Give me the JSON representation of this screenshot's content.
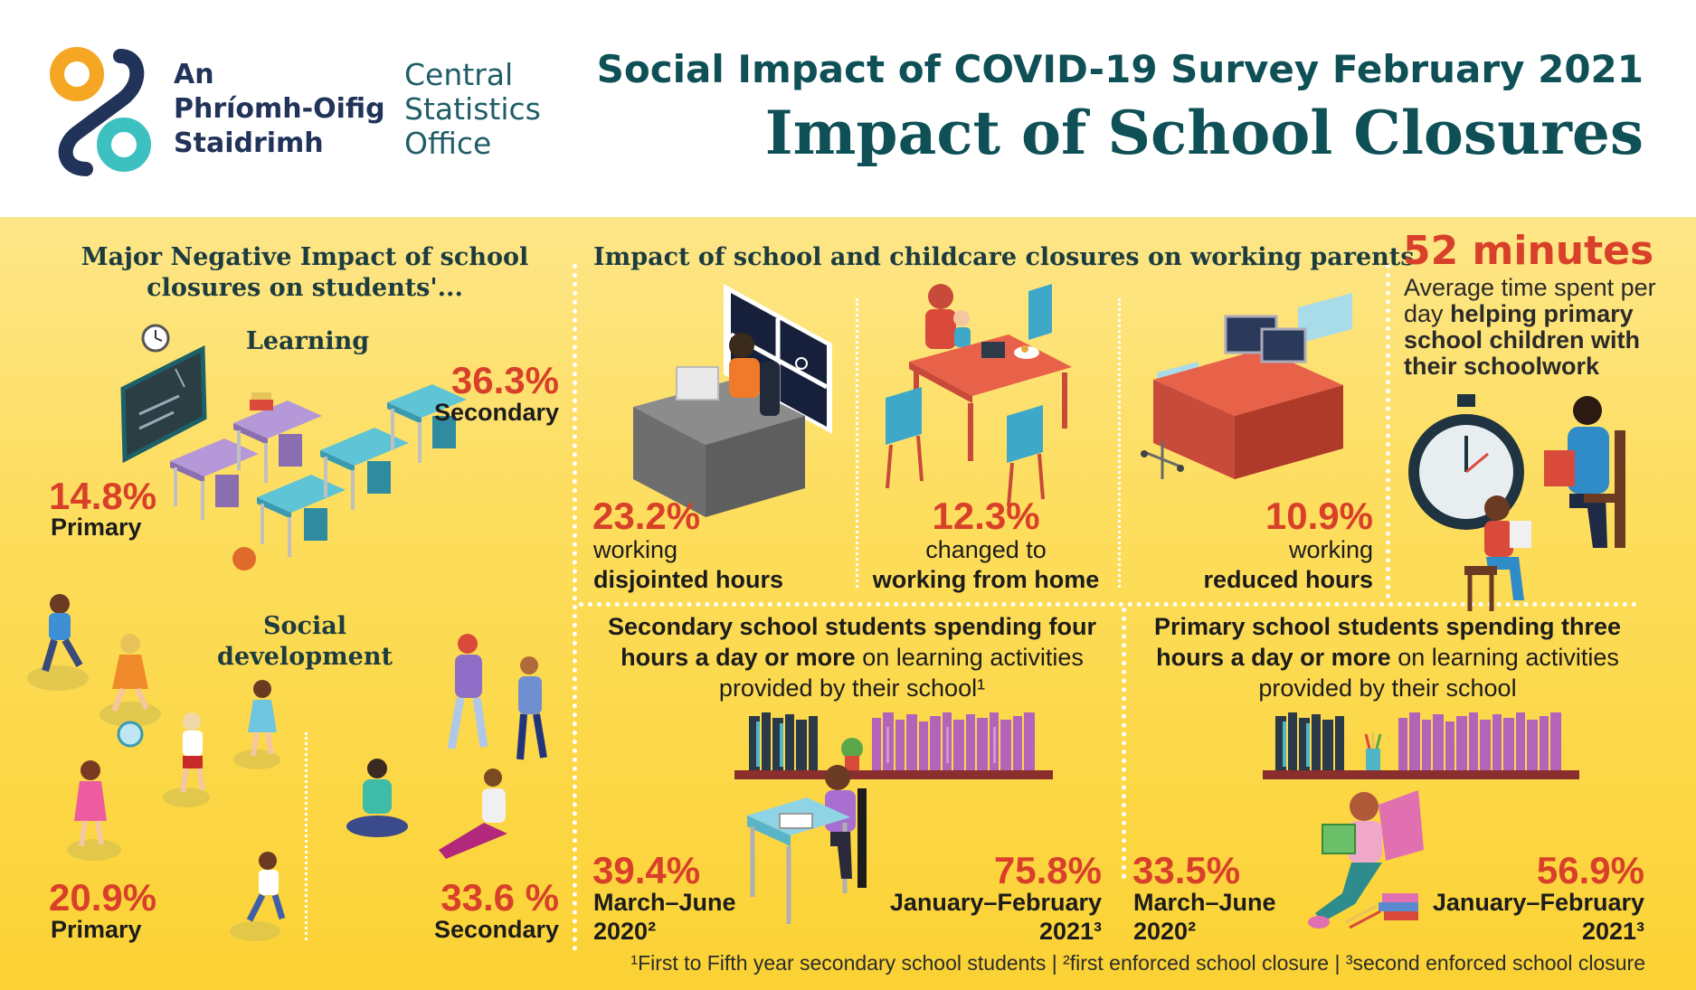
{
  "header": {
    "logo_irish": [
      "An",
      "Phríomh-Oifig",
      "Staidrimh"
    ],
    "logo_english": [
      "Central",
      "Statistics",
      "Office"
    ],
    "survey_title": "Social Impact of COVID-19 Survey February 2021",
    "main_title": "Impact of School Closures"
  },
  "students": {
    "title": "Major Negative Impact of school closures on students'...",
    "learning": {
      "label": "Learning",
      "secondary_value": "36.3%",
      "secondary_label": "Secondary",
      "primary_value": "14.8%",
      "primary_label": "Primary"
    },
    "social": {
      "label": "Social development",
      "primary_value": "20.9%",
      "primary_label": "Primary",
      "secondary_value": "33.6 %",
      "secondary_label": "Secondary"
    }
  },
  "parents": {
    "title": "Impact of school and childcare closures on working parents",
    "items": [
      {
        "value": "23.2%",
        "line1": "working",
        "line2": "disjointed hours"
      },
      {
        "value": "12.3%",
        "line1": "changed to",
        "line2": "working from home"
      },
      {
        "value": "10.9%",
        "line1": "working",
        "line2": "reduced hours"
      }
    ]
  },
  "help": {
    "value": "52 minutes",
    "text_plain": "Average time spent per day",
    "text_bold": "helping primary school children with their schoolwork"
  },
  "secondary_learning": {
    "title_bold": "Secondary school students spending four hours a day or more",
    "title_plain": "on learning activities provided by their school¹",
    "period1_value": "39.4%",
    "period1_line1": "March–June",
    "period1_line2": "2020²",
    "period2_value": "75.8%",
    "period2_line1": "January–February",
    "period2_line2": "2021³"
  },
  "primary_learning": {
    "title_bold": "Primary school students spending three hours a day or more",
    "title_plain": "on learning activities provided by their school",
    "period1_value": "33.5%",
    "period1_line1": "March–June",
    "period1_line2": "2020²",
    "period2_value": "56.9%",
    "period2_line1": "January–February",
    "period2_line2": "2021³"
  },
  "footnote": "¹First to Fifth year secondary school students  |  ²first enforced school closure  |  ³second enforced school closure",
  "colors": {
    "accent_red": "#d8402a",
    "title_teal": "#0e5056",
    "panel_yellow": "#fddd5c",
    "logo_orange": "#f5a623",
    "logo_navy": "#22335a",
    "logo_teal": "#3cc0c0"
  }
}
